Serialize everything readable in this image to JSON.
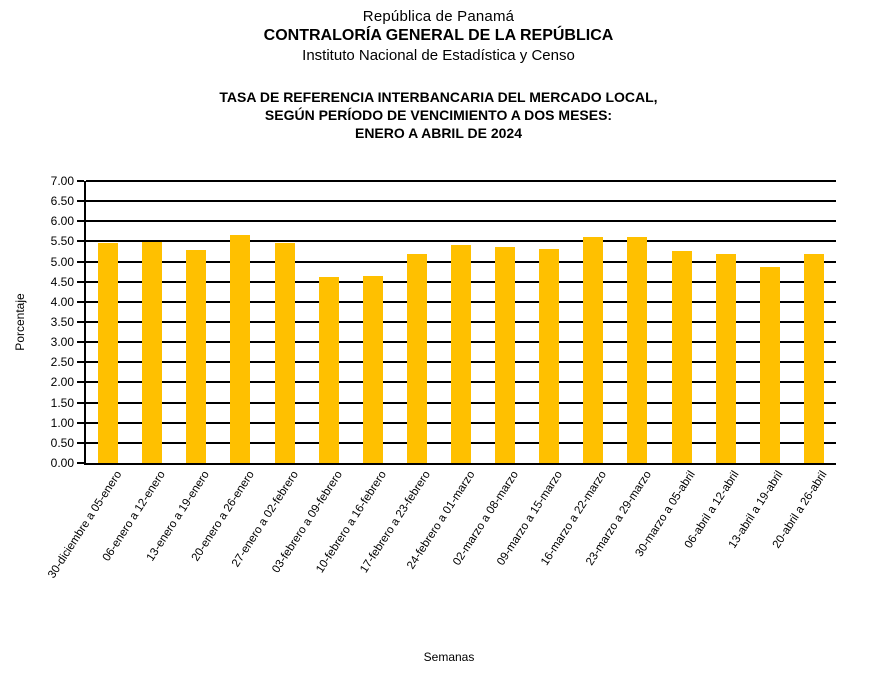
{
  "header": {
    "line1": "República de Panamá",
    "line2": "CONTRALORÍA GENERAL DE LA REPÚBLICA",
    "line3": "Instituto  Nacional de Estadística y Censo"
  },
  "title": {
    "line1": "TASA DE REFERENCIA INTERBANCARIA DEL MERCADO LOCAL,",
    "line2": "SEGÚN PERÍODO DE VENCIMIENTO A DOS MESES:",
    "line3": "ENERO A ABRIL DE 2024"
  },
  "chart_data": {
    "type": "bar",
    "title": "TASA DE REFERENCIA INTERBANCARIA DEL MERCADO LOCAL, SEGÚN PERÍODO DE VENCIMIENTO A DOS MESES: ENERO A ABRIL DE 2024",
    "categories": [
      "30-diciembre a 05-enero",
      "06-enero a 12-enero",
      "13-enero a 19-enero",
      "20-enero a 26-enero",
      "27-enero a 02-febrero",
      "03-febrero a 09-febrero",
      "10-febrero a 16-febrero",
      "17-febrero a 23-febrero",
      "24-febrero a 01-marzo",
      "02-marzo a 08-marzo",
      "09-marzo a 15-marzo",
      "16-marzo a 22-marzo",
      "23-marzo a 29-marzo",
      "30-marzo a 05-abril",
      "06-abril a 12-abril",
      "13-abril a 19-abril",
      "20-abril a 26-abril"
    ],
    "values": [
      5.46,
      5.48,
      5.28,
      5.66,
      5.46,
      4.61,
      4.64,
      5.18,
      5.42,
      5.37,
      5.31,
      5.6,
      5.62,
      5.26,
      5.18,
      4.87,
      5.18
    ],
    "xlabel": "Semanas",
    "ylabel": "Porcentaje",
    "ylim": [
      0,
      7
    ],
    "ytick_step": 0.5,
    "ytick_format_decimals": 2,
    "bar_color": "#FFC000",
    "gridline_color": "#000000",
    "grid": true,
    "legend": "none"
  }
}
